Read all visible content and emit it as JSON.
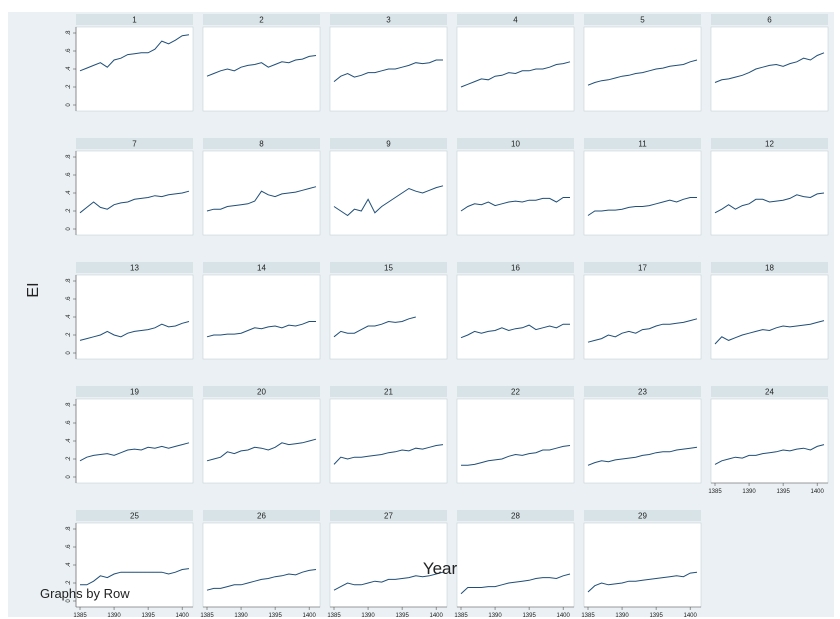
{
  "chart_data": {
    "type": "line",
    "by_label": "Graphs by Row",
    "xlabel": "Year",
    "ylabel": "EI",
    "xlim": [
      1385,
      1401
    ],
    "ylim": [
      0,
      0.8
    ],
    "xticks": [
      1385,
      1390,
      1395,
      1400
    ],
    "yticks": [
      0,
      0.2,
      0.4,
      0.6,
      0.8
    ],
    "ytick_labels": [
      "0",
      ".2",
      ".4",
      ".6",
      ".8"
    ],
    "x": [
      1385,
      1386,
      1387,
      1388,
      1389,
      1390,
      1391,
      1392,
      1393,
      1394,
      1395,
      1396,
      1397,
      1398,
      1399,
      1400,
      1401
    ],
    "series": [
      {
        "name": "1",
        "values": [
          0.38,
          0.41,
          0.44,
          0.47,
          0.42,
          0.5,
          0.52,
          0.56,
          0.57,
          0.58,
          0.58,
          0.62,
          0.71,
          0.68,
          0.72,
          0.77,
          0.78
        ]
      },
      {
        "name": "2",
        "values": [
          0.32,
          0.35,
          0.38,
          0.4,
          0.38,
          0.42,
          0.44,
          0.45,
          0.47,
          0.42,
          0.45,
          0.48,
          0.47,
          0.5,
          0.51,
          0.54,
          0.55
        ]
      },
      {
        "name": "3",
        "values": [
          0.26,
          0.32,
          0.35,
          0.31,
          0.33,
          0.36,
          0.36,
          0.38,
          0.4,
          0.4,
          0.42,
          0.44,
          0.47,
          0.46,
          0.47,
          0.5,
          0.5
        ]
      },
      {
        "name": "4",
        "values": [
          0.2,
          0.23,
          0.26,
          0.29,
          0.28,
          0.32,
          0.33,
          0.36,
          0.35,
          0.38,
          0.38,
          0.4,
          0.4,
          0.42,
          0.45,
          0.46,
          0.48
        ]
      },
      {
        "name": "5",
        "values": [
          0.22,
          0.25,
          0.27,
          0.28,
          0.3,
          0.32,
          0.33,
          0.35,
          0.36,
          0.38,
          0.4,
          0.41,
          0.43,
          0.44,
          0.45,
          0.48,
          0.5
        ]
      },
      {
        "name": "6",
        "values": [
          0.25,
          0.28,
          0.29,
          0.31,
          0.33,
          0.36,
          0.4,
          0.42,
          0.44,
          0.45,
          0.43,
          0.46,
          0.48,
          0.52,
          0.5,
          0.55,
          0.58
        ]
      },
      {
        "name": "7",
        "values": [
          0.18,
          0.24,
          0.3,
          0.24,
          0.22,
          0.27,
          0.29,
          0.3,
          0.33,
          0.34,
          0.35,
          0.37,
          0.36,
          0.38,
          0.39,
          0.4,
          0.42
        ]
      },
      {
        "name": "8",
        "values": [
          0.2,
          0.22,
          0.22,
          0.25,
          0.26,
          0.27,
          0.28,
          0.31,
          0.42,
          0.38,
          0.36,
          0.39,
          0.4,
          0.41,
          0.43,
          0.45,
          0.47
        ]
      },
      {
        "name": "9",
        "values": [
          0.25,
          0.2,
          0.15,
          0.22,
          0.2,
          0.33,
          0.18,
          0.25,
          0.3,
          0.35,
          0.4,
          0.45,
          0.42,
          0.4,
          0.43,
          0.46,
          0.48
        ]
      },
      {
        "name": "10",
        "values": [
          0.2,
          0.25,
          0.28,
          0.27,
          0.3,
          0.26,
          0.28,
          0.3,
          0.31,
          0.3,
          0.32,
          0.32,
          0.34,
          0.34,
          0.3,
          0.35,
          0.35
        ]
      },
      {
        "name": "11",
        "values": [
          0.15,
          0.2,
          0.2,
          0.21,
          0.21,
          0.22,
          0.24,
          0.25,
          0.25,
          0.26,
          0.28,
          0.3,
          0.32,
          0.3,
          0.33,
          0.35,
          0.35
        ]
      },
      {
        "name": "12",
        "values": [
          0.18,
          0.22,
          0.27,
          0.22,
          0.26,
          0.28,
          0.33,
          0.33,
          0.3,
          0.31,
          0.32,
          0.34,
          0.38,
          0.36,
          0.35,
          0.39,
          0.4
        ]
      },
      {
        "name": "13",
        "values": [
          0.14,
          0.16,
          0.18,
          0.2,
          0.24,
          0.2,
          0.18,
          0.22,
          0.24,
          0.25,
          0.26,
          0.28,
          0.32,
          0.29,
          0.3,
          0.33,
          0.35
        ]
      },
      {
        "name": "14",
        "values": [
          0.18,
          0.2,
          0.2,
          0.21,
          0.21,
          0.22,
          0.25,
          0.28,
          0.27,
          0.29,
          0.3,
          0.28,
          0.31,
          0.3,
          0.32,
          0.35,
          0.35
        ]
      },
      {
        "name": "15",
        "values": [
          0.18,
          0.24,
          0.22,
          0.22,
          0.26,
          0.3,
          0.3,
          0.32,
          0.35,
          0.34,
          0.35,
          0.38,
          0.4,
          null,
          null,
          null,
          null
        ]
      },
      {
        "name": "16",
        "values": [
          0.17,
          0.2,
          0.24,
          0.22,
          0.24,
          0.25,
          0.28,
          0.25,
          0.27,
          0.28,
          0.31,
          0.26,
          0.28,
          0.3,
          0.28,
          0.32,
          0.32
        ]
      },
      {
        "name": "17",
        "values": [
          0.12,
          0.14,
          0.16,
          0.2,
          0.18,
          0.22,
          0.24,
          0.22,
          0.26,
          0.27,
          0.3,
          0.32,
          0.32,
          0.33,
          0.34,
          0.36,
          0.38
        ]
      },
      {
        "name": "18",
        "values": [
          0.1,
          0.18,
          0.14,
          0.17,
          0.2,
          0.22,
          0.24,
          0.26,
          0.25,
          0.28,
          0.3,
          0.29,
          0.3,
          0.31,
          0.32,
          0.34,
          0.36
        ]
      },
      {
        "name": "19",
        "values": [
          0.18,
          0.22,
          0.24,
          0.25,
          0.26,
          0.24,
          0.27,
          0.3,
          0.31,
          0.3,
          0.33,
          0.32,
          0.34,
          0.32,
          0.34,
          0.36,
          0.38
        ]
      },
      {
        "name": "20",
        "values": [
          0.18,
          0.2,
          0.22,
          0.28,
          0.26,
          0.29,
          0.3,
          0.33,
          0.32,
          0.3,
          0.33,
          0.38,
          0.36,
          0.37,
          0.38,
          0.4,
          0.42
        ]
      },
      {
        "name": "21",
        "values": [
          0.14,
          0.22,
          0.2,
          0.22,
          0.22,
          0.23,
          0.24,
          0.25,
          0.27,
          0.28,
          0.3,
          0.29,
          0.32,
          0.31,
          0.33,
          0.35,
          0.36
        ]
      },
      {
        "name": "22",
        "values": [
          0.13,
          0.13,
          0.14,
          0.16,
          0.18,
          0.19,
          0.2,
          0.23,
          0.25,
          0.24,
          0.26,
          0.27,
          0.3,
          0.3,
          0.32,
          0.34,
          0.35
        ]
      },
      {
        "name": "23",
        "values": [
          0.13,
          0.16,
          0.18,
          0.17,
          0.19,
          0.2,
          0.21,
          0.22,
          0.24,
          0.25,
          0.27,
          0.28,
          0.28,
          0.3,
          0.31,
          0.32,
          0.33
        ]
      },
      {
        "name": "24",
        "values": [
          0.14,
          0.18,
          0.2,
          0.22,
          0.21,
          0.24,
          0.24,
          0.26,
          0.27,
          0.28,
          0.3,
          0.29,
          0.31,
          0.32,
          0.3,
          0.34,
          0.36
        ]
      },
      {
        "name": "25",
        "values": [
          0.18,
          0.18,
          0.22,
          0.28,
          0.26,
          0.3,
          0.32,
          0.32,
          0.32,
          0.32,
          0.32,
          0.32,
          0.32,
          0.3,
          0.32,
          0.35,
          0.36
        ]
      },
      {
        "name": "26",
        "values": [
          0.12,
          0.14,
          0.14,
          0.16,
          0.18,
          0.18,
          0.2,
          0.22,
          0.24,
          0.25,
          0.27,
          0.28,
          0.3,
          0.29,
          0.32,
          0.34,
          0.35
        ]
      },
      {
        "name": "27",
        "values": [
          0.12,
          0.16,
          0.2,
          0.18,
          0.18,
          0.2,
          0.22,
          0.21,
          0.24,
          0.24,
          0.25,
          0.26,
          0.28,
          0.27,
          0.28,
          0.3,
          0.32
        ]
      },
      {
        "name": "28",
        "values": [
          0.08,
          0.15,
          0.15,
          0.15,
          0.16,
          0.16,
          0.18,
          0.2,
          0.21,
          0.22,
          0.23,
          0.25,
          0.26,
          0.26,
          0.25,
          0.28,
          0.3
        ]
      },
      {
        "name": "29",
        "values": [
          0.1,
          0.17,
          0.2,
          0.18,
          0.19,
          0.2,
          0.22,
          0.22,
          0.23,
          0.24,
          0.25,
          0.26,
          0.27,
          0.28,
          0.27,
          0.31,
          0.32
        ]
      }
    ]
  },
  "style": {
    "page_bg": "#ffffff",
    "outer_bg": "#eaf0f3",
    "panel_bg": "#ffffff",
    "strip_bg": "#d8e3e8",
    "line_color": "#1f4e79",
    "text_color": "#222222"
  }
}
